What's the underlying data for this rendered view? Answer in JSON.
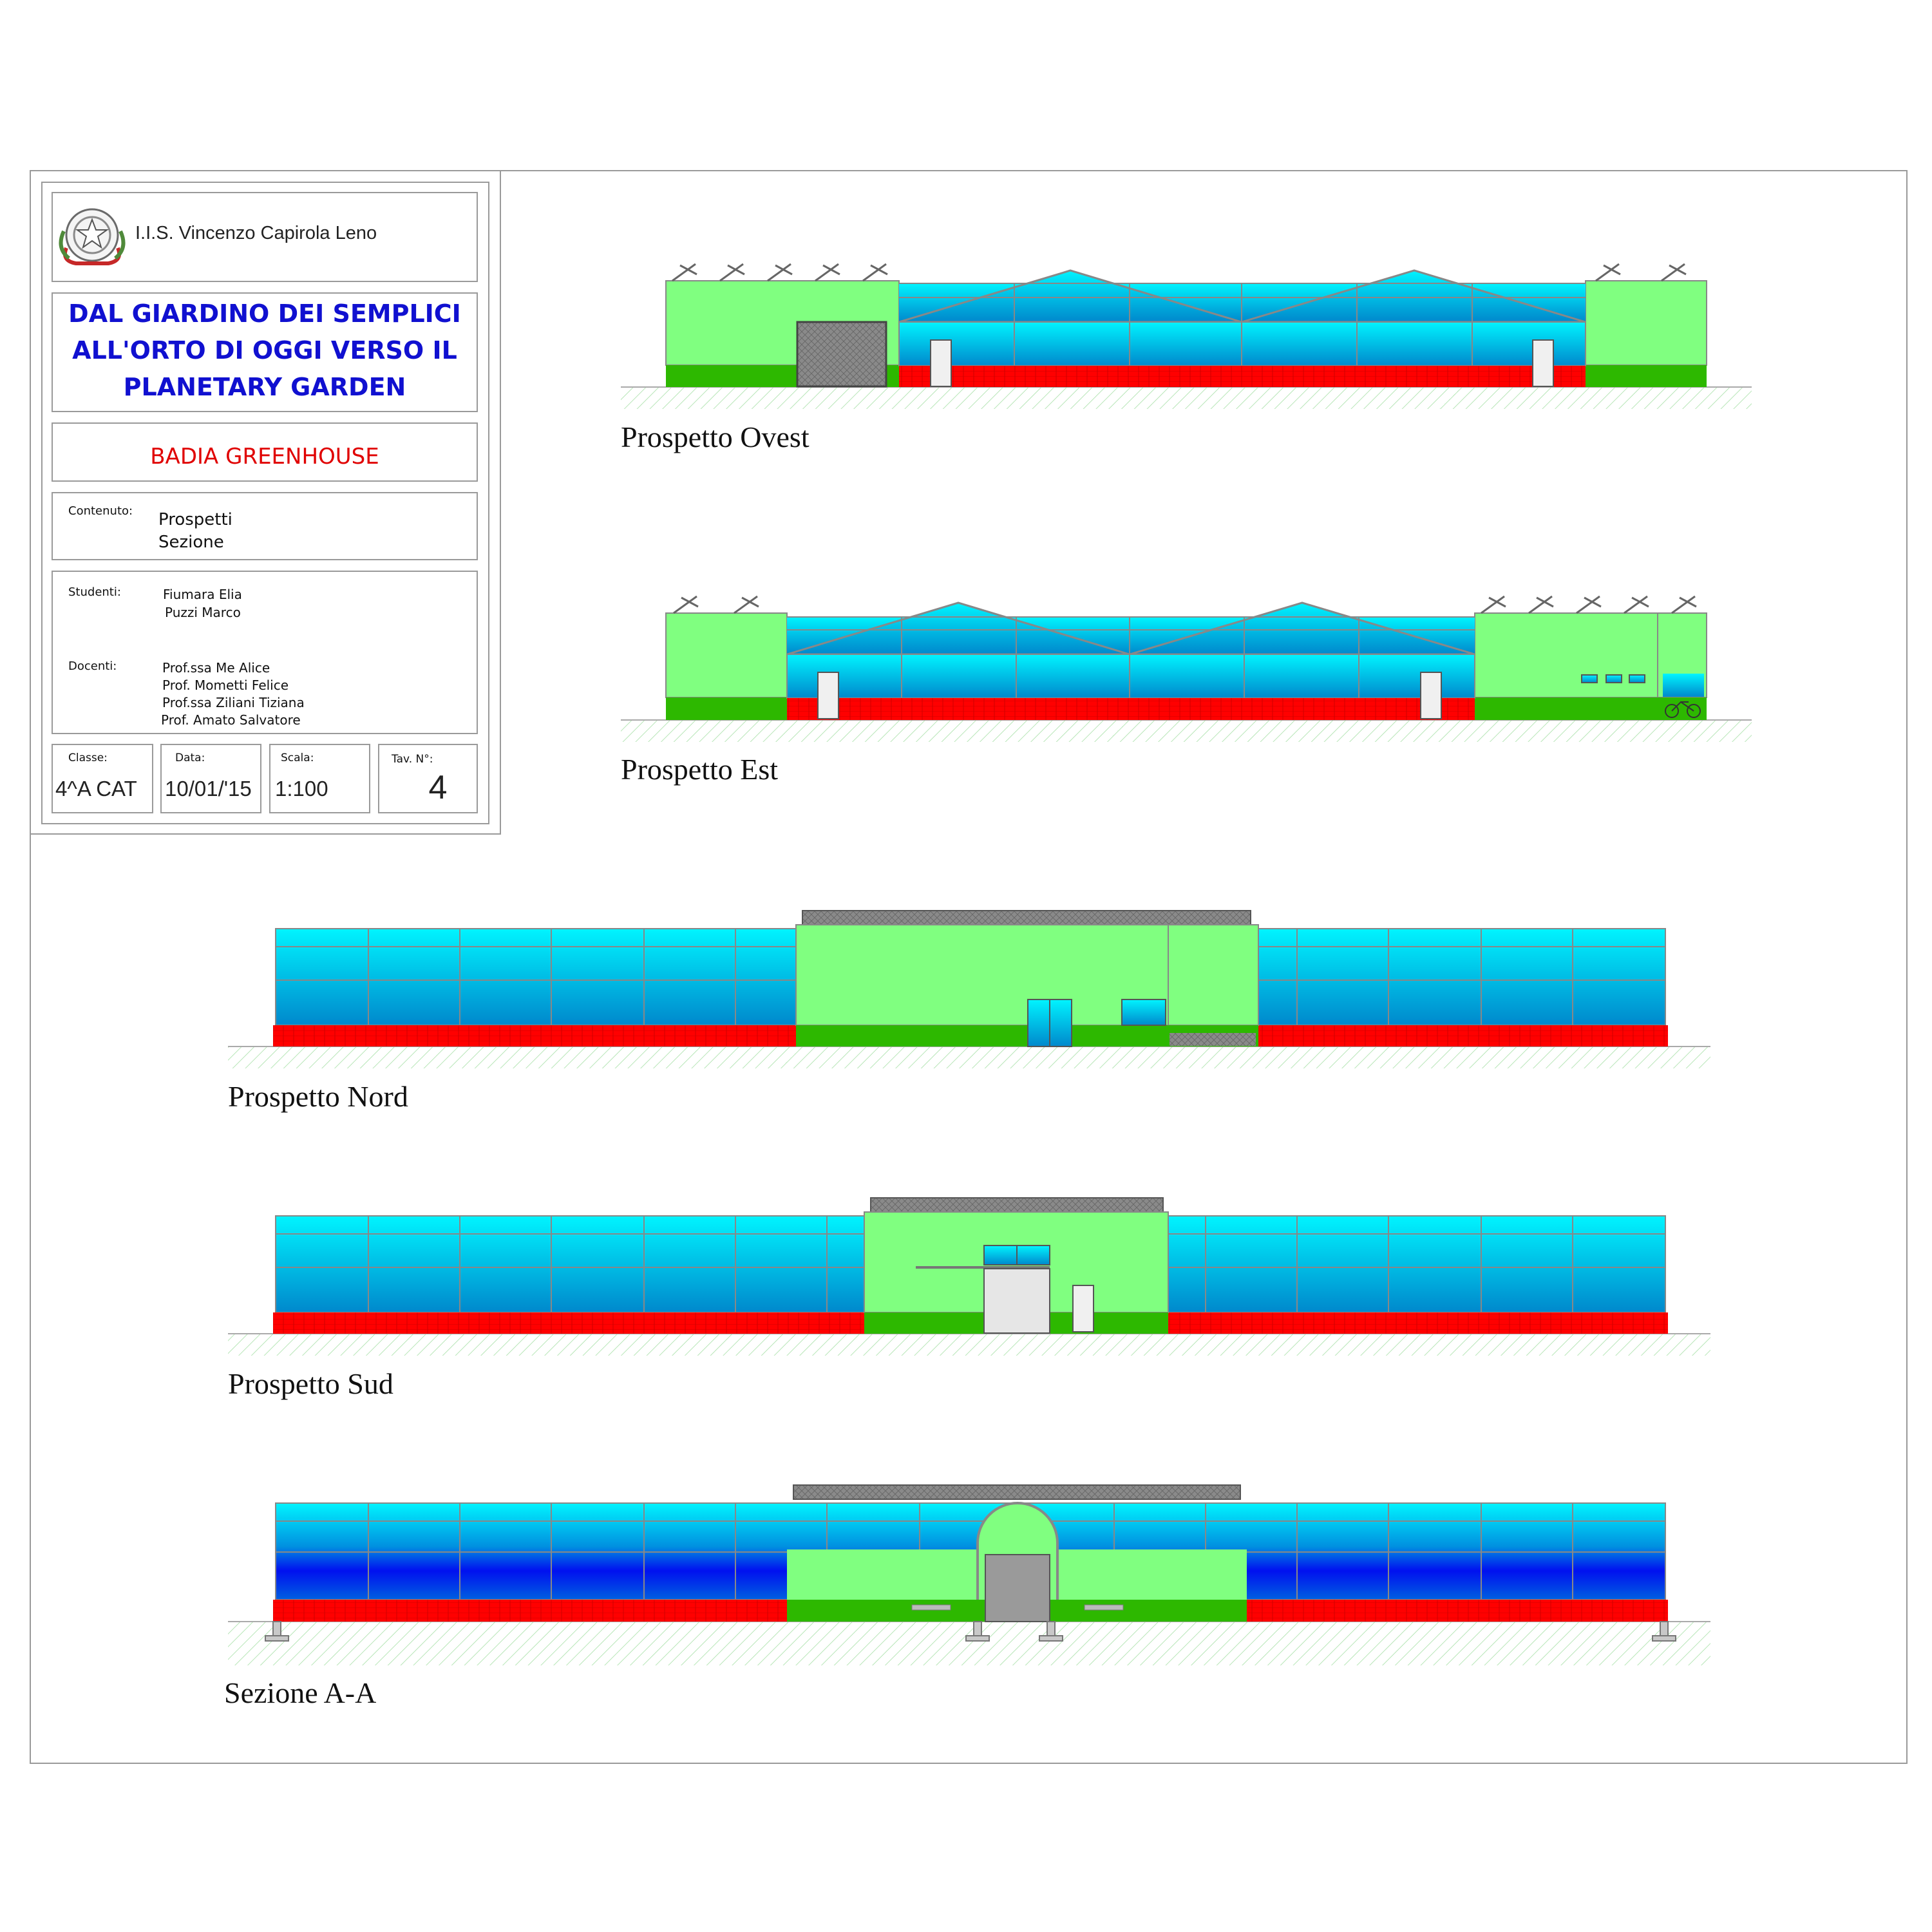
{
  "title_block": {
    "institute": "I.I.S. Vincenzo Capirola Leno",
    "project_title": [
      "DAL GIARDINO DEI SEMPLICI",
      "ALL'ORTO DI OGGI VERSO IL",
      "PLANETARY GARDEN"
    ],
    "project_name": "BADIA GREENHOUSE",
    "contents_label": "Contenuto:",
    "contents": [
      "Prospetti",
      "Sezione"
    ],
    "students_label": "Studenti:",
    "students": [
      "Fiumara Elia",
      "Puzzi Marco"
    ],
    "teachers_label": "Docenti:",
    "teachers": [
      "Prof.ssa Me Alice",
      "Prof. Mometti Felice",
      "Prof.ssa Ziliani Tiziana",
      "Prof. Amato Salvatore"
    ],
    "class_label": "Classe:",
    "class_value": "4^A CAT",
    "date_label": "Data:",
    "date_value": "10/01/'15",
    "scale_label": "Scala:",
    "scale_value": "1:100",
    "sheet_label": "Tav. N°:",
    "sheet_value": "4",
    "emblem_icon": "italian-republic-emblem-icon"
  },
  "drawings": {
    "ovest": "Prospetto Ovest",
    "est": "Prospetto Est",
    "nord": "Prospetto Nord",
    "sud": "Prospetto Sud",
    "sezione": "Sezione A-A"
  },
  "colors": {
    "glass_top": "#00f0ff",
    "glass_bottom": "#0090d0",
    "glass_deep": "#0020e0",
    "wall_green": "#80ff80",
    "base_green": "#2db800",
    "base_red": "#ff0000",
    "frame": "#888888",
    "roof_grey": "#777777",
    "title_blue": "#1010d0",
    "title_red": "#e00000"
  }
}
